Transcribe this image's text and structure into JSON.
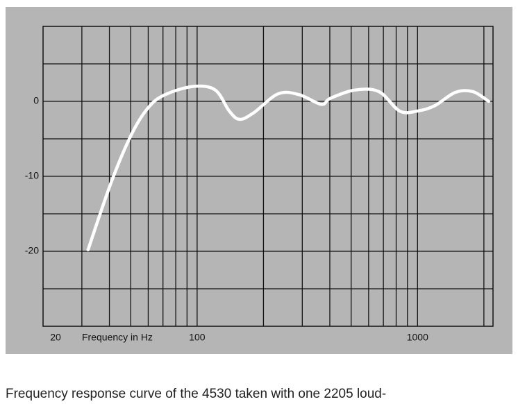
{
  "chart_data": {
    "type": "line",
    "x_label": "Frequency in Hz",
    "caption": "Frequency response curve of the 4530 taken with one 2205 loud-",
    "log_x": true,
    "xlim": [
      20,
      2200
    ],
    "ylim": [
      -30,
      10
    ],
    "xticks": [
      20,
      100,
      1000
    ],
    "yticks": [
      0,
      -10,
      -20
    ],
    "xgrid": [
      30,
      40,
      50,
      60,
      70,
      80,
      90,
      100,
      200,
      300,
      400,
      500,
      600,
      700,
      800,
      900,
      1000,
      2000
    ],
    "ygrid": [
      -25,
      -20,
      -15,
      -10,
      -5,
      0,
      5
    ],
    "series": [
      {
        "color": "#ffffff",
        "x": [
          32,
          41,
          51,
          61,
          73,
          97,
          121,
          140,
          156,
          181,
          233,
          290,
          366,
          402,
          518,
          668,
          830,
          996,
          1194,
          1486,
          1782,
          2104
        ],
        "values": [
          -19.8,
          -10.6,
          -4.1,
          -0.6,
          1,
          2,
          1.5,
          -1.3,
          -2.4,
          -1.5,
          1,
          0.9,
          -0.4,
          0.4,
          1.5,
          1.3,
          -1.3,
          -1.3,
          -0.6,
          1.2,
          1.3,
          0
        ]
      }
    ]
  }
}
